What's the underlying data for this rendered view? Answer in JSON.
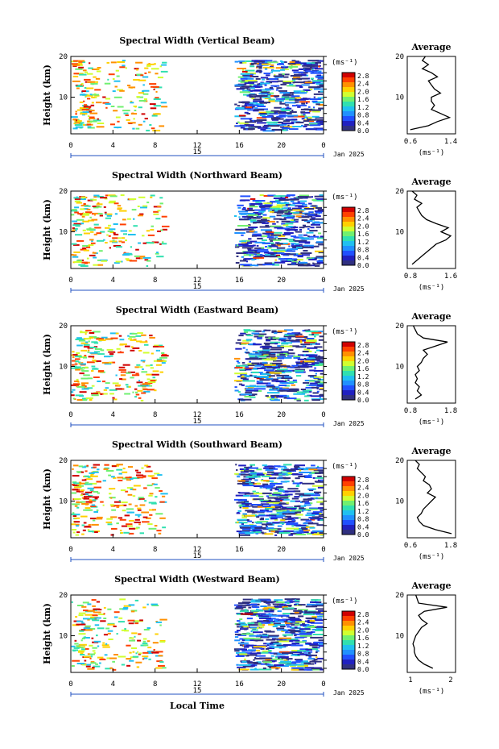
{
  "xlabel": "Local Time",
  "date_label": "Jan 2025",
  "day_label": "15",
  "y_axis_label": "Height (km)",
  "unit_label": "(ms⁻¹)",
  "avg_title": "Average",
  "colorbar_ticks": [
    "2.8",
    "2.4",
    "2.0",
    "1.6",
    "1.2",
    "0.8",
    "0.4",
    "0.0"
  ],
  "colorbar_colors": [
    "#d00000",
    "#ff4000",
    "#ff9000",
    "#ffd000",
    "#d0ff30",
    "#70f070",
    "#30e0b0",
    "#20c0f0",
    "#2090ff",
    "#2050ff",
    "#2020c0",
    "#303080"
  ],
  "chart_data": [
    {
      "type": "heatmap",
      "title": "Spectral Width (Vertical Beam)",
      "x_ticks": [
        "0",
        "4",
        "8",
        "12",
        "16",
        "20",
        "0"
      ],
      "y_ticks": [
        "20",
        "10"
      ],
      "xlim": [
        0,
        24
      ],
      "ylim": [
        1,
        20
      ],
      "data_gap": [
        9,
        15.5
      ],
      "avg_profile": {
        "xlim": [
          0.6,
          1.4
        ],
        "x_ticks": [
          "0.6",
          "1.4"
        ],
        "heights": [
          2,
          3,
          4,
          5,
          6,
          7,
          8,
          9,
          10,
          11,
          12,
          13,
          14,
          15,
          16,
          17,
          18,
          19,
          20
        ],
        "values": [
          0.65,
          0.95,
          1.1,
          1.3,
          1.15,
          1.0,
          1.05,
          1.0,
          1.0,
          1.15,
          1.05,
          1.0,
          0.95,
          1.1,
          1.0,
          0.85,
          0.95,
          0.85,
          0.9
        ]
      }
    },
    {
      "type": "heatmap",
      "title": "Spectral Width (Northward Beam)",
      "x_ticks": [
        "0",
        "4",
        "8",
        "12",
        "16",
        "20",
        "0"
      ],
      "y_ticks": [
        "20",
        "10"
      ],
      "xlim": [
        0,
        24
      ],
      "ylim": [
        1,
        20
      ],
      "data_gap": [
        9,
        15.5
      ],
      "avg_profile": {
        "xlim": [
          0.6,
          1.6
        ],
        "x_ticks": [
          "0.8",
          "1.6"
        ],
        "heights": [
          2,
          3,
          4,
          5,
          6,
          7,
          8,
          9,
          10,
          11,
          12,
          13,
          14,
          15,
          16,
          17,
          18,
          19,
          20
        ],
        "values": [
          0.7,
          0.8,
          0.9,
          1.0,
          1.1,
          1.2,
          1.4,
          1.5,
          1.3,
          1.45,
          1.2,
          1.0,
          0.9,
          0.85,
          0.8,
          0.9,
          0.75,
          0.8,
          0.7
        ]
      }
    },
    {
      "type": "heatmap",
      "title": "Spectral Width (Eastward Beam)",
      "x_ticks": [
        "0",
        "4",
        "8",
        "12",
        "16",
        "20",
        "0"
      ],
      "y_ticks": [
        "20",
        "10"
      ],
      "xlim": [
        0,
        24
      ],
      "ylim": [
        1,
        20
      ],
      "data_gap": [
        9,
        15.5
      ],
      "avg_profile": {
        "xlim": [
          0.6,
          1.8
        ],
        "x_ticks": [
          "0.8",
          "1.8"
        ],
        "heights": [
          2,
          3,
          4,
          5,
          6,
          7,
          8,
          9,
          10,
          11,
          12,
          13,
          14,
          15,
          16,
          17,
          18,
          19,
          20
        ],
        "values": [
          0.8,
          0.95,
          0.85,
          0.9,
          0.8,
          0.85,
          0.8,
          0.9,
          0.85,
          0.95,
          1.0,
          1.1,
          1.0,
          1.3,
          1.6,
          1.0,
          0.85,
          0.8,
          0.75
        ]
      }
    },
    {
      "type": "heatmap",
      "title": "Spectral Width (Southward Beam)",
      "x_ticks": [
        "0",
        "4",
        "8",
        "12",
        "16",
        "20",
        "0"
      ],
      "y_ticks": [
        "20",
        "10"
      ],
      "xlim": [
        0,
        24
      ],
      "ylim": [
        1,
        20
      ],
      "data_gap": [
        9,
        15.5
      ],
      "avg_profile": {
        "xlim": [
          0.6,
          1.8
        ],
        "x_ticks": [
          "0.6",
          "1.8"
        ],
        "heights": [
          2,
          3,
          4,
          5,
          6,
          7,
          8,
          9,
          10,
          11,
          12,
          13,
          14,
          15,
          16,
          17,
          18,
          19,
          20
        ],
        "values": [
          1.7,
          1.3,
          1.0,
          0.9,
          0.85,
          0.95,
          1.0,
          1.1,
          1.2,
          1.3,
          1.1,
          1.2,
          1.15,
          1.0,
          1.05,
          0.95,
          0.85,
          0.9,
          0.8
        ]
      }
    },
    {
      "type": "heatmap",
      "title": "Spectral Width (Westward Beam)",
      "x_ticks": [
        "0",
        "4",
        "8",
        "12",
        "16",
        "20",
        "0"
      ],
      "y_ticks": [
        "20",
        "10"
      ],
      "xlim": [
        0,
        24
      ],
      "ylim": [
        1,
        20
      ],
      "data_gap": [
        9,
        15.5
      ],
      "avg_profile": {
        "xlim": [
          0.6,
          2.3
        ],
        "x_ticks": [
          "1",
          "2"
        ],
        "heights": [
          2,
          3,
          4,
          5,
          6,
          7,
          8,
          9,
          10,
          11,
          12,
          13,
          14,
          15,
          16,
          17,
          18,
          19,
          20
        ],
        "values": [
          1.5,
          1.2,
          1.0,
          0.9,
          0.85,
          0.85,
          0.8,
          0.85,
          0.9,
          1.0,
          1.1,
          1.3,
          1.1,
          1.0,
          1.2,
          2.0,
          1.0,
          0.95,
          0.9
        ]
      }
    }
  ]
}
